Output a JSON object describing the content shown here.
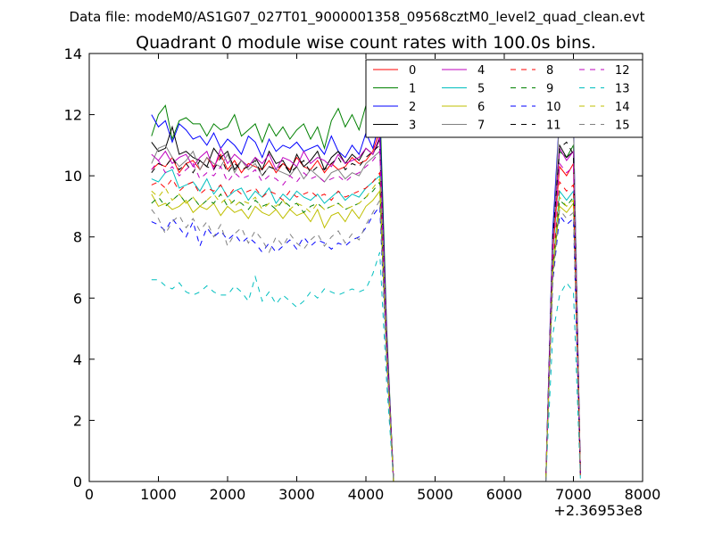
{
  "figure": {
    "suptitle": "Data file: modeM0/AS1G07_027T01_9000001358_09568cztM0_level2_quad_clean.evt",
    "offset_label": "+2.36953e8"
  },
  "chart_data": {
    "type": "line",
    "title": "Quadrant 0 module wise count rates with 100.0s bins.",
    "xlabel": "",
    "ylabel": "",
    "xlim": [
      0,
      8000
    ],
    "ylim": [
      0,
      14
    ],
    "x_offset": 236953000,
    "xticks": [
      0,
      1000,
      2000,
      3000,
      4000,
      5000,
      6000,
      7000,
      8000
    ],
    "yticks": [
      0,
      2,
      4,
      6,
      8,
      10,
      12,
      14
    ],
    "grid": false,
    "legend": {
      "placement": "top-right",
      "columns": 4
    },
    "x": [
      900,
      1000,
      1100,
      1200,
      1300,
      1400,
      1500,
      1600,
      1700,
      1800,
      1900,
      2000,
      2100,
      2200,
      2300,
      2400,
      2500,
      2600,
      2700,
      2800,
      2900,
      3000,
      3100,
      3200,
      3300,
      3400,
      3500,
      3600,
      3700,
      3800,
      3900,
      4000,
      4100,
      4200,
      4300,
      4400,
      4500,
      4600,
      4700,
      4800,
      4900,
      5000,
      5100,
      5200,
      5300,
      5400,
      5500,
      5600,
      5700,
      5800,
      5900,
      6000,
      6100,
      6200,
      6300,
      6400,
      6500,
      6600,
      6700,
      6800,
      6900,
      7000,
      7100
    ],
    "series": [
      {
        "name": "0",
        "color": "#ff0000",
        "dash": "solid",
        "values": [
          10.2,
          10.4,
          10.3,
          10.6,
          10.1,
          10.4,
          10.5,
          10.2,
          10.6,
          10.3,
          10.7,
          10.2,
          10.5,
          10.1,
          10.4,
          10.3,
          10.2,
          10.5,
          10.1,
          10.4,
          10.2,
          10.6,
          10.3,
          10.2,
          10.5,
          10.1,
          10.4,
          10.2,
          10.3,
          10.6,
          10.4,
          10.5,
          10.8,
          11.5,
          4.5,
          0,
          0,
          0,
          0,
          0,
          0,
          0,
          0,
          0,
          0,
          0,
          0,
          0,
          0,
          0,
          0,
          0,
          0,
          0,
          0,
          0,
          0,
          0,
          7.5,
          10.3,
          10.0,
          10.4,
          0.3
        ]
      },
      {
        "name": "1",
        "color": "#008000",
        "dash": "solid",
        "values": [
          11.3,
          12.0,
          12.3,
          11.2,
          11.8,
          11.9,
          11.7,
          11.7,
          11.3,
          11.7,
          11.5,
          11.6,
          12.0,
          11.3,
          11.5,
          11.7,
          11.1,
          11.7,
          11.3,
          11.6,
          11.2,
          11.5,
          11.7,
          11.2,
          11.6,
          10.9,
          11.8,
          12.2,
          11.6,
          12.0,
          11.5,
          12.3,
          12.1,
          12.5,
          5.0,
          0,
          0,
          0,
          0,
          0,
          0,
          0,
          0,
          0,
          0,
          0,
          0,
          0,
          0,
          0,
          0,
          0,
          0,
          0,
          0,
          0,
          0,
          0,
          8.0,
          10.8,
          10.6,
          11.0,
          0.3
        ]
      },
      {
        "name": "2",
        "color": "#0000ff",
        "dash": "solid",
        "values": [
          12.0,
          11.6,
          11.8,
          11.1,
          11.7,
          11.5,
          11.2,
          11.3,
          11.0,
          11.4,
          10.9,
          11.2,
          11.0,
          10.7,
          11.3,
          11.1,
          10.6,
          11.2,
          10.8,
          11.0,
          10.9,
          11.1,
          10.8,
          10.9,
          11.0,
          10.7,
          11.3,
          10.8,
          10.6,
          11.0,
          10.7,
          11.4,
          10.9,
          11.8,
          4.8,
          0,
          0,
          0,
          0,
          0,
          0,
          0,
          0,
          0,
          0,
          0,
          0,
          0,
          0,
          0,
          0,
          0,
          0,
          0,
          0,
          0,
          0,
          0,
          8.2,
          12.0,
          11.6,
          11.8,
          0.3
        ]
      },
      {
        "name": "3",
        "color": "#000000",
        "dash": "solid",
        "values": [
          11.1,
          10.8,
          10.9,
          11.6,
          10.7,
          10.8,
          10.6,
          10.5,
          10.3,
          10.9,
          10.6,
          10.8,
          10.2,
          10.5,
          10.3,
          10.6,
          10.2,
          10.8,
          10.4,
          10.5,
          10.1,
          10.7,
          10.3,
          10.5,
          10.8,
          10.2,
          10.6,
          10.8,
          10.4,
          10.7,
          10.5,
          10.9,
          10.7,
          11.2,
          4.6,
          0,
          0,
          0,
          0,
          0,
          0,
          0,
          0,
          0,
          0,
          0,
          0,
          0,
          0,
          0,
          0,
          0,
          0,
          0,
          0,
          0,
          0,
          0,
          7.8,
          11.0,
          10.6,
          10.8,
          0.3
        ]
      },
      {
        "name": "4",
        "color": "#bf00bf",
        "dash": "solid",
        "values": [
          10.7,
          10.5,
          10.8,
          10.4,
          10.6,
          10.7,
          10.3,
          10.6,
          10.8,
          10.2,
          10.9,
          10.4,
          10.7,
          10.5,
          10.3,
          10.6,
          10.4,
          10.7,
          10.2,
          10.6,
          10.5,
          10.3,
          10.8,
          10.4,
          10.6,
          10.5,
          10.3,
          10.7,
          10.4,
          10.5,
          10.6,
          10.9,
          10.7,
          11.3,
          4.6,
          0,
          0,
          0,
          0,
          0,
          0,
          0,
          0,
          0,
          0,
          0,
          0,
          0,
          0,
          0,
          0,
          0,
          0,
          0,
          0,
          0,
          0,
          0,
          7.9,
          10.9,
          10.5,
          10.8,
          0.3
        ]
      },
      {
        "name": "5",
        "color": "#00bfbf",
        "dash": "solid",
        "values": [
          9.9,
          9.8,
          10.1,
          10.2,
          9.6,
          9.7,
          9.8,
          9.5,
          9.9,
          9.4,
          9.7,
          9.3,
          9.5,
          9.6,
          9.2,
          9.5,
          9.3,
          9.6,
          9.1,
          9.4,
          9.2,
          9.5,
          9.3,
          9.2,
          9.4,
          9.1,
          9.3,
          9.5,
          9.2,
          9.4,
          9.3,
          9.6,
          9.8,
          10.0,
          4.2,
          0,
          0,
          0,
          0,
          0,
          0,
          0,
          0,
          0,
          0,
          0,
          0,
          0,
          0,
          0,
          0,
          0,
          0,
          0,
          0,
          0,
          0,
          0,
          7.0,
          9.5,
          9.2,
          9.5,
          0.2
        ]
      },
      {
        "name": "6",
        "color": "#bfbf00",
        "dash": "solid",
        "values": [
          9.4,
          9.0,
          9.1,
          8.9,
          9.0,
          9.2,
          8.8,
          9.0,
          8.9,
          9.1,
          8.7,
          9.0,
          8.8,
          8.9,
          8.6,
          9.0,
          8.8,
          8.7,
          8.9,
          8.6,
          8.9,
          8.7,
          8.8,
          8.5,
          8.9,
          8.3,
          8.7,
          8.8,
          8.5,
          8.9,
          8.6,
          9.0,
          9.2,
          9.5,
          4.0,
          0,
          0,
          0,
          0,
          0,
          0,
          0,
          0,
          0,
          0,
          0,
          0,
          0,
          0,
          0,
          0,
          0,
          0,
          0,
          0,
          0,
          0,
          0,
          6.8,
          9.0,
          8.8,
          9.1,
          0.2
        ]
      },
      {
        "name": "7",
        "color": "#808080",
        "dash": "solid",
        "values": [
          10.4,
          10.9,
          11.0,
          10.6,
          10.3,
          10.5,
          10.8,
          10.2,
          10.6,
          10.4,
          10.3,
          10.7,
          10.1,
          10.5,
          10.2,
          10.4,
          10.0,
          10.3,
          10.2,
          10.1,
          10.0,
          10.3,
          9.9,
          10.2,
          10.0,
          9.8,
          10.1,
          10.2,
          9.9,
          10.1,
          10.0,
          10.4,
          10.6,
          10.8,
          4.4,
          0,
          0,
          0,
          0,
          0,
          0,
          0,
          0,
          0,
          0,
          0,
          0,
          0,
          0,
          0,
          0,
          0,
          0,
          0,
          0,
          0,
          0,
          0,
          7.6,
          12.0,
          11.8,
          11.7,
          0.3
        ]
      },
      {
        "name": "8",
        "color": "#ff0000",
        "dash": "dashed",
        "values": [
          9.7,
          9.8,
          9.6,
          9.9,
          9.5,
          9.7,
          9.8,
          9.4,
          9.6,
          9.5,
          9.7,
          9.3,
          9.6,
          9.4,
          9.5,
          9.6,
          9.3,
          9.5,
          9.4,
          9.2,
          9.5,
          9.3,
          9.4,
          9.5,
          9.3,
          9.4,
          9.2,
          9.5,
          9.3,
          9.4,
          9.5,
          9.6,
          9.8,
          10.1,
          4.3,
          0,
          0,
          0,
          0,
          0,
          0,
          0,
          0,
          0,
          0,
          0,
          0,
          0,
          0,
          0,
          0,
          0,
          0,
          0,
          0,
          0,
          0,
          0,
          7.0,
          9.8,
          9.5,
          9.7,
          0.2
        ]
      },
      {
        "name": "9",
        "color": "#008000",
        "dash": "dashed",
        "values": [
          9.1,
          9.3,
          9.0,
          9.2,
          9.4,
          9.1,
          9.3,
          9.0,
          9.2,
          9.1,
          9.4,
          9.0,
          9.2,
          9.1,
          8.9,
          9.2,
          9.0,
          9.1,
          8.9,
          9.2,
          9.0,
          9.1,
          8.8,
          9.0,
          9.1,
          8.9,
          9.0,
          9.1,
          8.9,
          9.0,
          9.1,
          9.3,
          9.5,
          9.8,
          4.1,
          0,
          0,
          0,
          0,
          0,
          0,
          0,
          0,
          0,
          0,
          0,
          0,
          0,
          0,
          0,
          0,
          0,
          0,
          0,
          0,
          0,
          0,
          0,
          6.9,
          9.2,
          9.0,
          9.3,
          0.2
        ]
      },
      {
        "name": "10",
        "color": "#0000ff",
        "dash": "dashed",
        "values": [
          8.5,
          8.4,
          8.2,
          8.6,
          8.3,
          8.0,
          8.5,
          7.7,
          8.3,
          8.0,
          8.2,
          7.9,
          8.1,
          7.8,
          8.0,
          7.8,
          7.5,
          7.8,
          7.5,
          7.7,
          7.9,
          7.6,
          8.0,
          7.7,
          7.9,
          7.8,
          7.6,
          7.8,
          7.7,
          7.9,
          8.0,
          8.3,
          8.7,
          9.0,
          3.8,
          0,
          0,
          0,
          0,
          0,
          0,
          0,
          0,
          0,
          0,
          0,
          0,
          0,
          0,
          0,
          0,
          0,
          0,
          0,
          0,
          0,
          0,
          0,
          6.5,
          8.7,
          8.4,
          8.6,
          0.2
        ]
      },
      {
        "name": "11",
        "color": "#000000",
        "dash": "dashed",
        "values": [
          10.1,
          10.4,
          10.3,
          10.6,
          10.2,
          10.4,
          10.1,
          10.5,
          10.3,
          10.2,
          10.6,
          10.1,
          10.4,
          10.2,
          10.3,
          10.5,
          10.0,
          10.3,
          10.2,
          10.4,
          10.1,
          10.3,
          10.5,
          10.1,
          10.3,
          10.2,
          10.4,
          10.6,
          10.2,
          10.4,
          10.3,
          10.6,
          10.8,
          11.0,
          4.5,
          0,
          0,
          0,
          0,
          0,
          0,
          0,
          0,
          0,
          0,
          0,
          0,
          0,
          0,
          0,
          0,
          0,
          0,
          0,
          0,
          0,
          0,
          0,
          7.9,
          10.9,
          11.1,
          10.7,
          0.3
        ]
      },
      {
        "name": "12",
        "color": "#bf00bf",
        "dash": "dashed",
        "values": [
          10.2,
          10.5,
          10.1,
          10.3,
          10.0,
          10.2,
          10.4,
          9.9,
          10.1,
          10.0,
          10.3,
          9.8,
          10.1,
          9.9,
          10.0,
          10.2,
          9.8,
          10.0,
          9.9,
          9.7,
          10.0,
          9.8,
          10.1,
          9.9,
          10.0,
          9.8,
          9.9,
          10.0,
          9.8,
          10.0,
          10.1,
          10.3,
          10.5,
          10.8,
          4.4,
          0,
          0,
          0,
          0,
          0,
          0,
          0,
          0,
          0,
          0,
          0,
          0,
          0,
          0,
          0,
          0,
          0,
          0,
          0,
          0,
          0,
          0,
          0,
          7.6,
          10.4,
          10.1,
          10.3,
          0.3
        ]
      },
      {
        "name": "13",
        "color": "#00bfbf",
        "dash": "dashed",
        "values": [
          6.6,
          6.6,
          6.4,
          6.3,
          6.5,
          6.2,
          6.1,
          6.2,
          6.4,
          6.2,
          6.1,
          6.1,
          6.4,
          6.2,
          5.9,
          6.7,
          5.9,
          6.2,
          5.8,
          6.1,
          5.9,
          5.7,
          5.9,
          6.2,
          6.0,
          6.3,
          6.2,
          6.1,
          6.2,
          6.3,
          6.2,
          6.3,
          6.8,
          7.5,
          3.2,
          0,
          0,
          0,
          0,
          0,
          0,
          0,
          0,
          0,
          0,
          0,
          0,
          0,
          0,
          0,
          0,
          0,
          0,
          0,
          0,
          0,
          0,
          0,
          4.8,
          6.1,
          6.5,
          6.2,
          0.1
        ]
      },
      {
        "name": "14",
        "color": "#bfbf00",
        "dash": "dashed",
        "values": [
          9.5,
          9.3,
          9.6,
          9.2,
          9.4,
          9.1,
          9.3,
          9.0,
          9.2,
          9.4,
          9.1,
          9.3,
          9.0,
          9.2,
          9.1,
          9.3,
          8.9,
          9.1,
          9.0,
          9.2,
          8.9,
          9.1,
          9.0,
          8.8,
          9.1,
          8.9,
          9.0,
          9.1,
          8.9,
          9.0,
          9.1,
          9.3,
          9.6,
          9.9,
          4.1,
          0,
          0,
          0,
          0,
          0,
          0,
          0,
          0,
          0,
          0,
          0,
          0,
          0,
          0,
          0,
          0,
          0,
          0,
          0,
          0,
          0,
          0,
          0,
          6.9,
          9.3,
          9.0,
          9.2,
          0.2
        ]
      },
      {
        "name": "15",
        "color": "#808080",
        "dash": "dashed",
        "values": [
          8.9,
          8.6,
          8.1,
          8.5,
          8.7,
          8.3,
          8.6,
          8.2,
          8.5,
          8.0,
          8.4,
          7.7,
          8.1,
          8.3,
          7.8,
          8.2,
          7.9,
          7.5,
          8.0,
          7.7,
          8.1,
          7.8,
          7.6,
          7.9,
          8.1,
          7.7,
          8.0,
          8.2,
          7.8,
          8.1,
          7.9,
          8.4,
          8.8,
          9.2,
          3.9,
          0,
          0,
          0,
          0,
          0,
          0,
          0,
          0,
          0,
          0,
          0,
          0,
          0,
          0,
          0,
          0,
          0,
          0,
          0,
          0,
          0,
          0,
          0,
          6.6,
          8.9,
          8.6,
          8.8,
          0.2
        ]
      }
    ]
  }
}
